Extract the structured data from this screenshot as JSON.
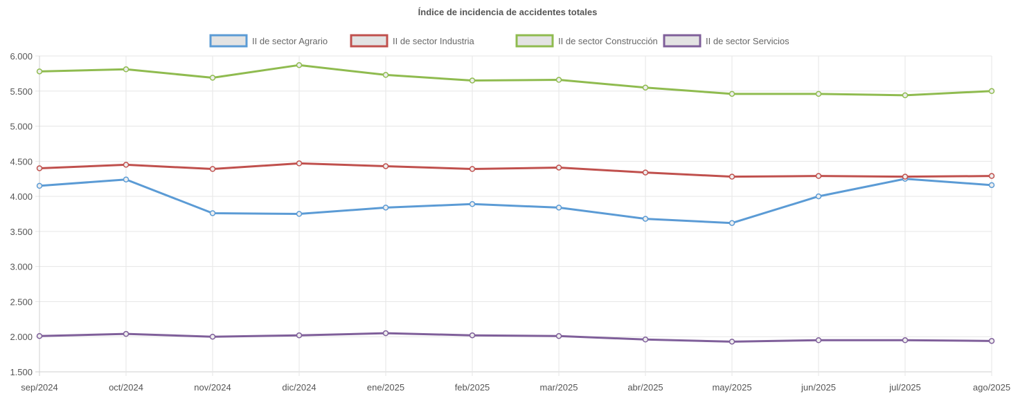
{
  "chart_data": {
    "type": "line",
    "title": "Índice de incidencia de accidentes totales",
    "xlabel": "",
    "ylabel": "",
    "categories": [
      "sep/2024",
      "oct/2024",
      "nov/2024",
      "dic/2024",
      "ene/2025",
      "feb/2025",
      "mar/2025",
      "abr/2025",
      "may/2025",
      "jun/2025",
      "jul/2025",
      "ago/2025"
    ],
    "ylim": [
      1500,
      6000
    ],
    "yticks": [
      1500,
      2000,
      2500,
      3000,
      3500,
      4000,
      4500,
      5000,
      5500,
      6000
    ],
    "ytick_labels": [
      "1.500",
      "2.000",
      "2.500",
      "3.000",
      "3.500",
      "4.000",
      "4.500",
      "5.000",
      "5.500",
      "6.000"
    ],
    "grid": true,
    "legend_position": "top",
    "series": [
      {
        "name": "II de sector Agrario",
        "color": "#5b9bd5",
        "values": [
          4150,
          4240,
          3760,
          3750,
          3840,
          3890,
          3840,
          3680,
          3620,
          4000,
          4250,
          4160
        ]
      },
      {
        "name": "II de sector Industria",
        "color": "#c0504d",
        "values": [
          4400,
          4450,
          4390,
          4470,
          4430,
          4390,
          4410,
          4340,
          4280,
          4290,
          4280,
          4290
        ]
      },
      {
        "name": "II de sector Construcción",
        "color": "#8fbb4f",
        "values": [
          5780,
          5810,
          5690,
          5870,
          5730,
          5650,
          5660,
          5550,
          5460,
          5460,
          5440,
          5500
        ]
      },
      {
        "name": "II de sector Servicios",
        "color": "#7f5f9a",
        "values": [
          2010,
          2040,
          2000,
          2020,
          2050,
          2020,
          2010,
          1960,
          1930,
          1950,
          1950,
          1940
        ]
      }
    ]
  }
}
